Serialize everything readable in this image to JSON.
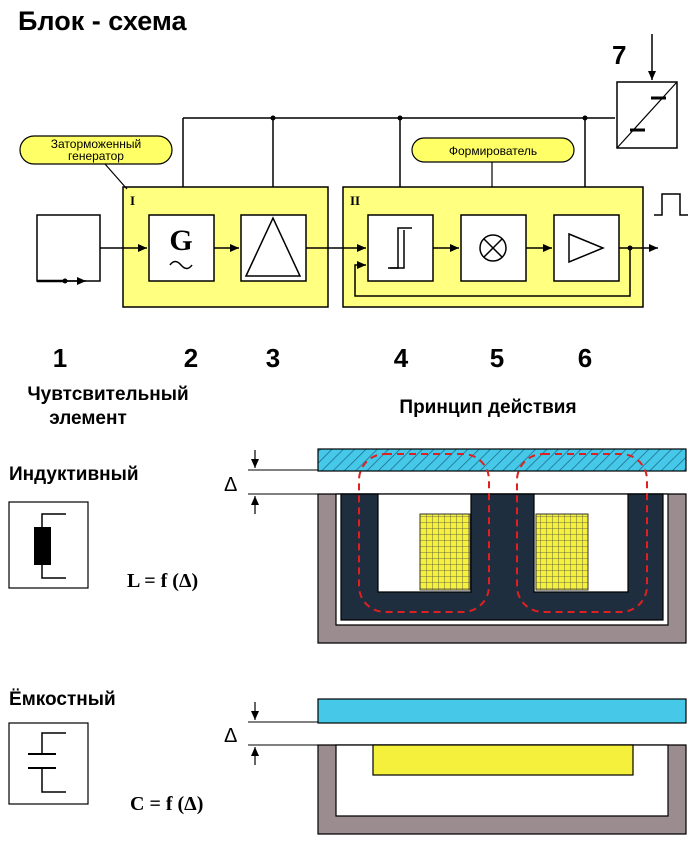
{
  "title": "Блок - схема",
  "callouts": {
    "generator": [
      "Заторможенный",
      "генератор"
    ],
    "shaper": "Формирователь"
  },
  "groups": {
    "first": "I",
    "second": "II"
  },
  "blocks": {
    "generator_symbol": "G"
  },
  "numbers": [
    "1",
    "2",
    "3",
    "4",
    "5",
    "6",
    "7"
  ],
  "headers": {
    "sensitive_element": [
      "Чувтсвительный",
      "элемент"
    ],
    "principle": "Принцип действия"
  },
  "inductive": {
    "label": "Индуктивный",
    "formula": "L = f (Δ)",
    "gap": "Δ"
  },
  "capacitive": {
    "label": "Ёмкостный",
    "formula": "C = f (Δ)",
    "gap": "Δ"
  },
  "colors": {
    "group_fill": "#ffff80",
    "callout_fill": "#ffff66",
    "core_dark": "#1e2e3e",
    "core_gray": "#9a8c8f",
    "plate_cyan": "#46c8e8",
    "coil_yellow": "#f5f03c",
    "flux_red": "#e02020"
  }
}
